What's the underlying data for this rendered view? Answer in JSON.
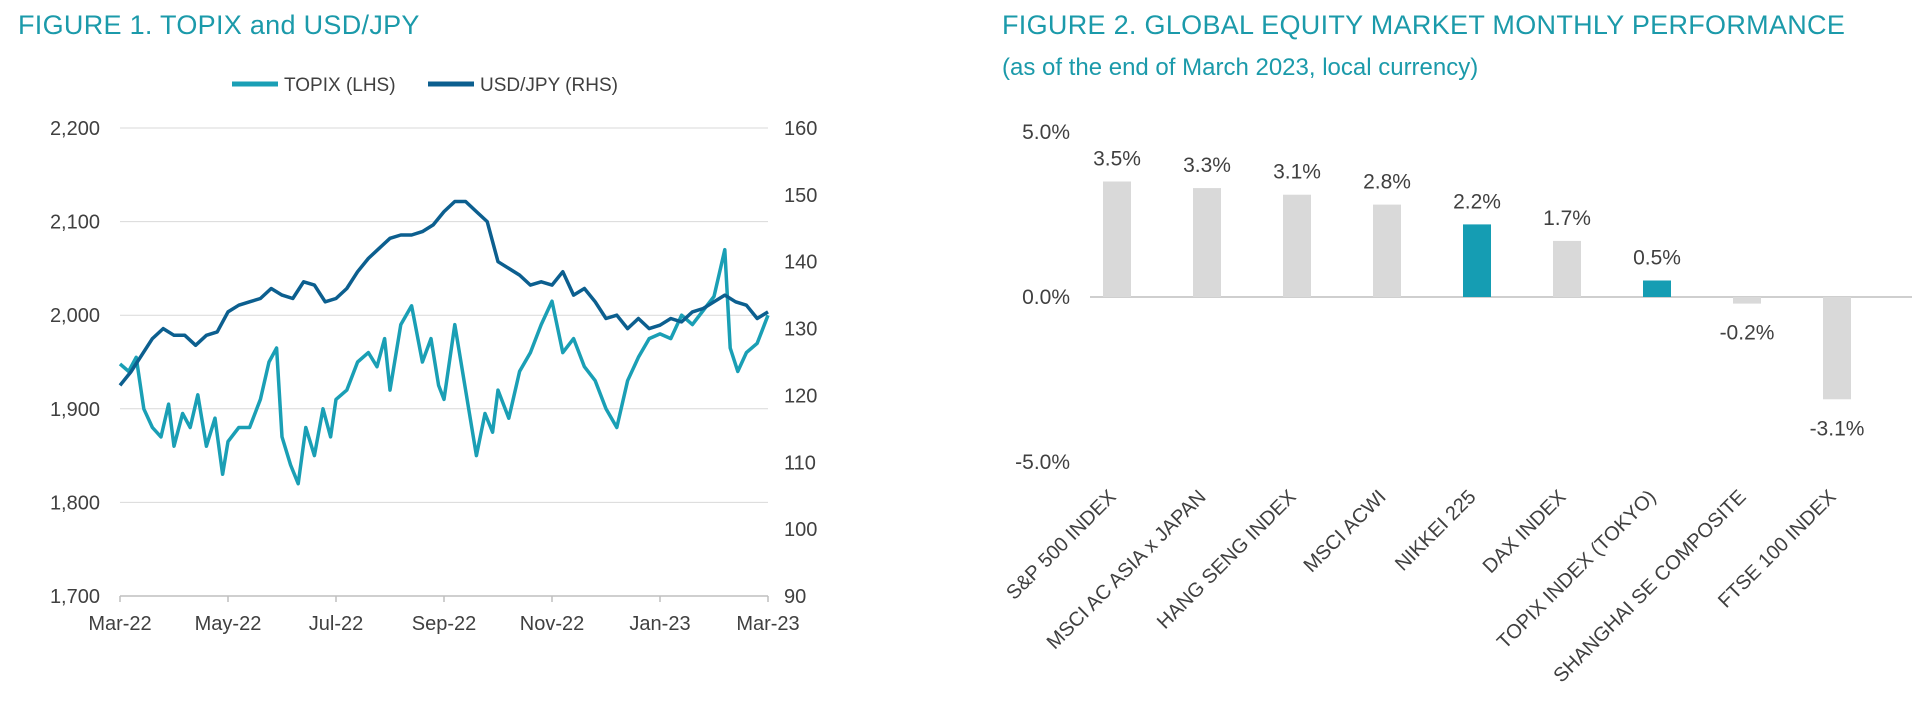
{
  "colors": {
    "title": "#1b9aaa",
    "topix": "#1a9fb5",
    "usdjpy": "#0c5f8f",
    "bar_default": "#d9d9d9",
    "bar_highlight": "#159db3",
    "grid": "#d9d9d9",
    "text": "#404040"
  },
  "chart_data": [
    {
      "type": "line",
      "title": "FIGURE 1. TOPIX and USD/JPY",
      "x_ticks": [
        "Mar-22",
        "May-22",
        "Jul-22",
        "Sep-22",
        "Nov-22",
        "Jan-23",
        "Mar-23"
      ],
      "y_left": {
        "label": "TOPIX (LHS)",
        "ticks": [
          "1,700",
          "1,800",
          "1,900",
          "2,000",
          "2,100",
          "2,200"
        ],
        "ylim": [
          1700,
          2200
        ]
      },
      "y_right": {
        "label": "USD/JPY (RHS)",
        "ticks": [
          "90",
          "100",
          "110",
          "120",
          "130",
          "140",
          "150",
          "160"
        ],
        "ylim": [
          90,
          160
        ]
      },
      "legend": [
        "TOPIX (LHS)",
        "USD/JPY (RHS)"
      ],
      "legend_position": "top-center",
      "series": [
        {
          "name": "TOPIX (LHS)",
          "axis": "left",
          "x": [
            0,
            0.08,
            0.15,
            0.22,
            0.3,
            0.38,
            0.45,
            0.5,
            0.58,
            0.65,
            0.72,
            0.8,
            0.88,
            0.95,
            1.0,
            1.1,
            1.2,
            1.3,
            1.38,
            1.45,
            1.5,
            1.58,
            1.65,
            1.72,
            1.8,
            1.88,
            1.95,
            2.0,
            2.1,
            2.2,
            2.3,
            2.38,
            2.45,
            2.5,
            2.6,
            2.7,
            2.8,
            2.88,
            2.95,
            3.0,
            3.1,
            3.2,
            3.3,
            3.38,
            3.45,
            3.5,
            3.6,
            3.7,
            3.8,
            3.9,
            4.0,
            4.1,
            4.2,
            4.3,
            4.4,
            4.5,
            4.6,
            4.7,
            4.8,
            4.9,
            5.0,
            5.1,
            5.2,
            5.3,
            5.4,
            5.5,
            5.6,
            5.65,
            5.72,
            5.8,
            5.9,
            6.0
          ],
          "values": [
            1948,
            1940,
            1955,
            1900,
            1880,
            1870,
            1905,
            1860,
            1895,
            1880,
            1915,
            1860,
            1890,
            1830,
            1865,
            1880,
            1880,
            1910,
            1950,
            1965,
            1870,
            1840,
            1820,
            1880,
            1850,
            1900,
            1870,
            1910,
            1920,
            1950,
            1960,
            1945,
            1975,
            1920,
            1990,
            2010,
            1950,
            1975,
            1925,
            1910,
            1990,
            1920,
            1850,
            1895,
            1875,
            1920,
            1890,
            1940,
            1960,
            1990,
            2015,
            1960,
            1975,
            1945,
            1930,
            1900,
            1880,
            1930,
            1955,
            1975,
            1980,
            1975,
            2000,
            1990,
            2005,
            2020,
            2070,
            1965,
            1940,
            1960,
            1970,
            2000
          ]
        },
        {
          "name": "USD/JPY (RHS)",
          "axis": "right",
          "x": [
            0,
            0.1,
            0.2,
            0.3,
            0.4,
            0.5,
            0.6,
            0.7,
            0.8,
            0.9,
            1.0,
            1.1,
            1.2,
            1.3,
            1.4,
            1.5,
            1.6,
            1.7,
            1.8,
            1.9,
            2.0,
            2.1,
            2.2,
            2.3,
            2.4,
            2.5,
            2.6,
            2.7,
            2.8,
            2.9,
            3.0,
            3.1,
            3.2,
            3.3,
            3.4,
            3.5,
            3.6,
            3.7,
            3.8,
            3.9,
            4.0,
            4.1,
            4.2,
            4.3,
            4.4,
            4.5,
            4.6,
            4.7,
            4.8,
            4.9,
            5.0,
            5.1,
            5.2,
            5.3,
            5.4,
            5.5,
            5.6,
            5.7,
            5.8,
            5.9,
            6.0
          ],
          "values": [
            121.5,
            123.5,
            126.0,
            128.5,
            130.0,
            129.0,
            129.0,
            127.5,
            129.0,
            129.5,
            132.5,
            133.5,
            134.0,
            134.5,
            136.0,
            135.0,
            134.5,
            137.0,
            136.5,
            134.0,
            134.5,
            136.0,
            138.5,
            140.5,
            142.0,
            143.5,
            144.0,
            144.0,
            144.5,
            145.5,
            147.5,
            149.0,
            149.0,
            147.5,
            146.0,
            140.0,
            139.0,
            138.0,
            136.5,
            137.0,
            136.5,
            138.5,
            135.0,
            136.0,
            134.0,
            131.5,
            132.0,
            130.0,
            131.5,
            130.0,
            130.5,
            131.5,
            131.0,
            132.5,
            133.0,
            134.0,
            135.0,
            134.0,
            133.5,
            131.5,
            132.5
          ]
        }
      ]
    },
    {
      "type": "bar",
      "title": "FIGURE 2. GLOBAL EQUITY MARKET MONTHLY PERFORMANCE",
      "subtitle": "(as of the end of March 2023, local currency)",
      "categories": [
        "S&P 500 INDEX",
        "MSCI AC ASIA x JAPAN",
        "HANG SENG INDEX",
        "MSCI ACWI",
        "NIKKEI 225",
        "DAX INDEX",
        "TOPIX INDEX (TOKYO)",
        "SHANGHAI SE COMPOSITE",
        "FTSE 100 INDEX"
      ],
      "values": [
        3.5,
        3.3,
        3.1,
        2.8,
        2.2,
        1.7,
        0.5,
        -0.2,
        -3.1
      ],
      "data_labels": [
        "3.5%",
        "3.3%",
        "3.1%",
        "2.8%",
        "2.2%",
        "1.7%",
        "0.5%",
        "-0.2%",
        "-3.1%"
      ],
      "highlighted": [
        "NIKKEI 225",
        "TOPIX INDEX (TOKYO)"
      ],
      "y_ticks": [
        "5.0%",
        "0.0%",
        "-5.0%"
      ],
      "ylim": [
        -5,
        5
      ],
      "grid": false
    }
  ]
}
